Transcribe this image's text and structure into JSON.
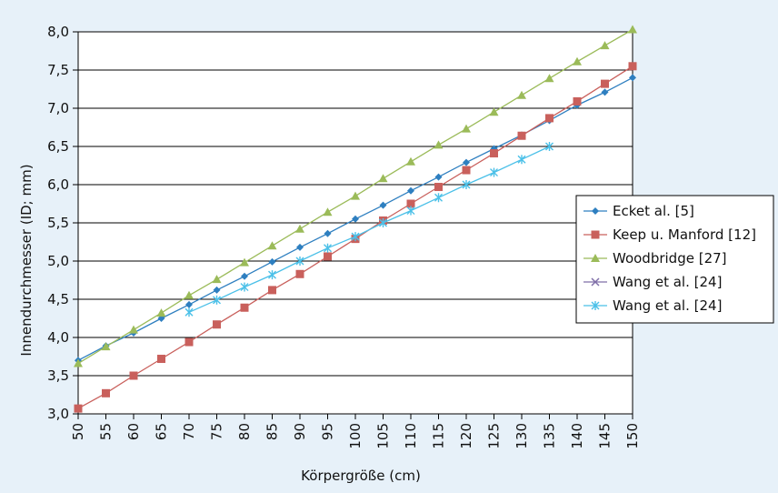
{
  "chart_data": {
    "type": "line",
    "title": "",
    "xlabel": "Körpergröße (cm)",
    "ylabel": "Innendurchmesser (ID; mm)",
    "ylim": [
      3.0,
      8.0
    ],
    "xlim": [
      50,
      150
    ],
    "grid": "horizontal",
    "legend_position": "right",
    "x_ticks": [
      "50",
      "55",
      "60",
      "65",
      "70",
      "75",
      "80",
      "85",
      "90",
      "95",
      "100",
      "105",
      "110",
      "115",
      "120",
      "125",
      "130",
      "135",
      "140",
      "145",
      "150"
    ],
    "y_ticks": [
      "3,0",
      "3,5",
      "4,0",
      "4,5",
      "5,0",
      "5,5",
      "6,0",
      "6,5",
      "7,0",
      "7,5",
      "8,0"
    ],
    "series": [
      {
        "name": "Ecket al. [5]",
        "color": "#2e7fc0",
        "marker": "diamond",
        "x": [
          50,
          55,
          60,
          65,
          70,
          75,
          80,
          85,
          90,
          95,
          100,
          105,
          110,
          115,
          120,
          125,
          130,
          135,
          140,
          145,
          150
        ],
        "values": [
          3.7,
          3.89,
          4.06,
          4.25,
          4.43,
          4.62,
          4.8,
          4.99,
          5.18,
          5.36,
          5.55,
          5.73,
          5.92,
          6.1,
          6.29,
          6.47,
          6.65,
          6.84,
          7.04,
          7.21,
          7.4
        ]
      },
      {
        "name": "Keep u. Manford [12]",
        "color": "#c9605c",
        "marker": "square",
        "x": [
          50,
          55,
          60,
          65,
          70,
          75,
          80,
          85,
          90,
          95,
          100,
          105,
          110,
          115,
          120,
          125,
          130,
          135,
          140,
          145,
          150
        ],
        "values": [
          3.07,
          3.27,
          3.5,
          3.72,
          3.94,
          4.17,
          4.39,
          4.62,
          4.83,
          5.06,
          5.29,
          5.53,
          5.75,
          5.97,
          6.19,
          6.41,
          6.64,
          6.87,
          7.09,
          7.32,
          7.55
        ]
      },
      {
        "name": "Woodbridge [27]",
        "color": "#9bbb59",
        "marker": "triangle",
        "x": [
          50,
          55,
          60,
          65,
          70,
          75,
          80,
          85,
          90,
          95,
          100,
          105,
          110,
          115,
          120,
          125,
          130,
          135,
          140,
          145,
          150
        ],
        "values": [
          3.66,
          3.88,
          4.1,
          4.32,
          4.55,
          4.76,
          4.98,
          5.2,
          5.42,
          5.64,
          5.85,
          6.08,
          6.3,
          6.52,
          6.73,
          6.95,
          7.17,
          7.39,
          7.61,
          7.82,
          8.03
        ]
      },
      {
        "name": "Wang et al. [24]",
        "color": "#7f6fa8",
        "marker": "x",
        "x": [],
        "values": []
      },
      {
        "name": "Wang et al. [24]",
        "color": "#4bc0e8",
        "marker": "asterisk",
        "x": [
          70,
          75,
          80,
          85,
          90,
          95,
          100,
          105,
          110,
          115,
          120,
          125,
          130,
          135
        ],
        "values": [
          4.33,
          4.49,
          4.66,
          4.82,
          5.0,
          5.17,
          5.32,
          5.5,
          5.66,
          5.83,
          6.0,
          6.16,
          6.33,
          6.5
        ]
      }
    ]
  }
}
